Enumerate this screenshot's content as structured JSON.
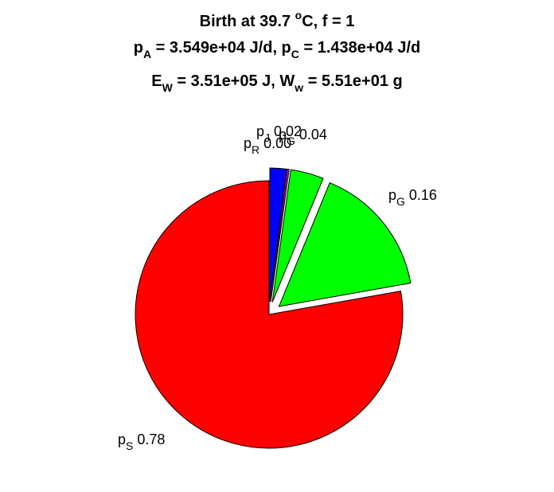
{
  "chart_data": {
    "type": "pie",
    "title_lines": [
      [
        {
          "t": "Birth at 39.7 "
        },
        {
          "t": "o",
          "sup": true
        },
        {
          "t": "C, f = 1"
        }
      ],
      [
        {
          "t": "p"
        },
        {
          "t": "A",
          "sub": true
        },
        {
          "t": " = 3.549e+04 J/d, p"
        },
        {
          "t": "C",
          "sub": true
        },
        {
          "t": " = 1.438e+04 J/d"
        }
      ],
      [
        {
          "t": "E"
        },
        {
          "t": "W",
          "sub": true
        },
        {
          "t": " = 3.51e+05 J, W"
        },
        {
          "t": "w",
          "sub": true
        },
        {
          "t": " = 5.51e+01 g"
        }
      ]
    ],
    "start_angle_deg": 90,
    "direction": "clockwise",
    "slices": [
      {
        "base": "p",
        "sub": "J",
        "value_label": "0.02",
        "value": 0.02,
        "color": "#0000ff",
        "explode": true
      },
      {
        "base": "p",
        "sub": "R",
        "value_label": "0.00",
        "value": 0.002,
        "color": "#ff00ff",
        "explode": true
      },
      {
        "base": "p",
        "sub": "G",
        "value_label": "0.04",
        "value": 0.04,
        "color": "#00ff00",
        "explode": true
      },
      {
        "base": "p",
        "sub": "G",
        "value_label": "0.16",
        "value": 0.16,
        "color": "#00ff00",
        "explode": true
      },
      {
        "base": "p",
        "sub": "S",
        "value_label": "0.78",
        "value": 0.778,
        "color": "#ff0000",
        "explode": false
      }
    ]
  }
}
